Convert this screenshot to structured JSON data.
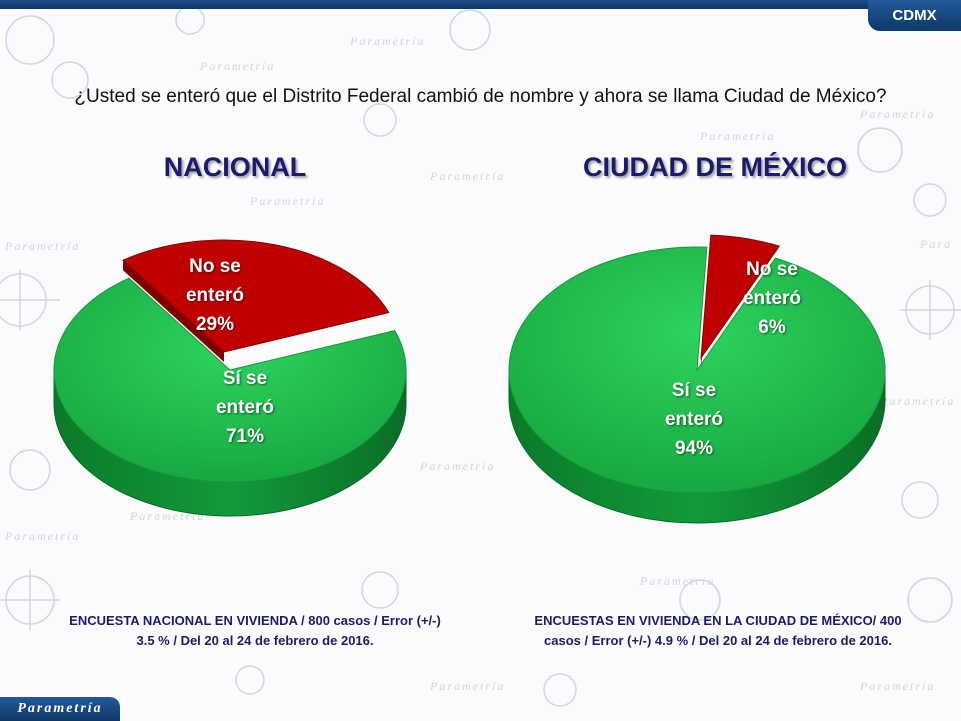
{
  "header": {
    "tag": "CDMX"
  },
  "question": "¿Usted se enteró que el Distrito Federal cambió de nombre y ahora se llama Ciudad de México?",
  "brand": {
    "logo_text": "Parametría"
  },
  "colors": {
    "green": "#1db34a",
    "red": "#c00000",
    "title": "#1b1b6e",
    "bar": "#0e3866"
  },
  "chart_data": [
    {
      "type": "pie",
      "title": "NACIONAL",
      "slices": [
        {
          "label_lines": [
            "No se",
            "enteró",
            "29%"
          ],
          "value": 29,
          "color": "#c00000"
        },
        {
          "label_lines": [
            "Sí se",
            "enteró",
            "71%"
          ],
          "value": 71,
          "color": "#1db34a"
        }
      ],
      "footnote_lines": [
        "ENCUESTA NACIONAL EN VIVIENDA / 800 casos / Error (+/-)",
        "3.5 % / Del 20 al 24 de febrero de 2016."
      ]
    },
    {
      "type": "pie",
      "title": "CIUDAD DE MÉXICO",
      "slices": [
        {
          "label_lines": [
            "No se",
            "enteró",
            "6%"
          ],
          "value": 6,
          "color": "#c00000"
        },
        {
          "label_lines": [
            "Sí se",
            "enteró",
            "94%"
          ],
          "value": 94,
          "color": "#1db34a"
        }
      ],
      "footnote_lines": [
        "ENCUESTAS EN VIVIENDA EN LA CIUDAD DE MÉXICO/ 400",
        "casos / Error (+/-) 4.9 % / Del 20 al 24 de febrero de 2016."
      ]
    }
  ]
}
